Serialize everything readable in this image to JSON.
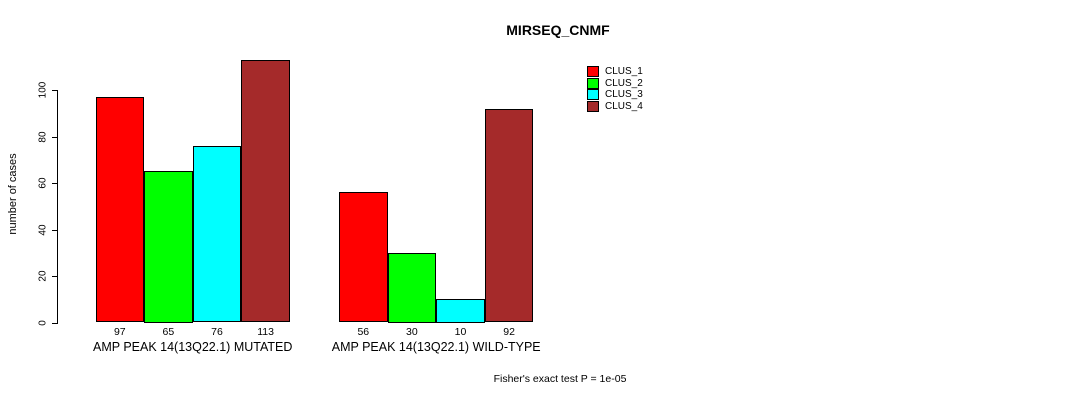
{
  "chart_data": {
    "type": "bar",
    "title": "MIRSEQ_CNMF",
    "ylabel": "number of cases",
    "xlabel": "",
    "ylim": [
      0,
      113
    ],
    "yticks": [
      0,
      20,
      40,
      60,
      80,
      100
    ],
    "grid": false,
    "legend_position": "top-right",
    "bar_value_labels_shown": true,
    "categories": [
      "AMP PEAK 14(13Q22.1) MUTATED",
      "AMP PEAK 14(13Q22.1) WILD-TYPE"
    ],
    "series": [
      {
        "name": "CLUS_1",
        "color": "#FF0000",
        "values": [
          97,
          56
        ]
      },
      {
        "name": "CLUS_2",
        "color": "#00FF00",
        "values": [
          65,
          30
        ]
      },
      {
        "name": "CLUS_3",
        "color": "#00FFFF",
        "values": [
          76,
          10
        ]
      },
      {
        "name": "CLUS_4",
        "color": "#A52A2A",
        "values": [
          113,
          92
        ]
      }
    ],
    "annotation": "Fisher's exact test P = 1e-05"
  },
  "colors": {
    "axis": "#000000",
    "background": "#FFFFFF"
  }
}
